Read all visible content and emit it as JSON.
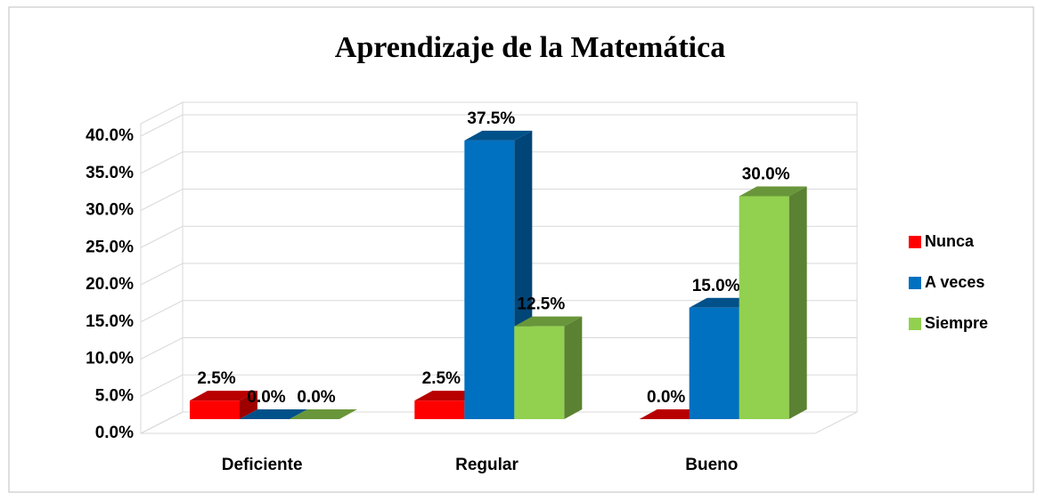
{
  "chart_data": {
    "type": "bar3d",
    "title": "Aprendizaje de la Matemática",
    "categories": [
      "Deficiente",
      "Regular",
      "Bueno"
    ],
    "series": [
      {
        "name": "Nunca",
        "color": "#ff0000",
        "values": [
          2.5,
          2.5,
          0.0
        ],
        "value_labels": [
          "2.5%",
          "2.5%",
          "0.0%"
        ]
      },
      {
        "name": "A veces",
        "color": "#0070c0",
        "values": [
          0.0,
          37.5,
          15.0
        ],
        "value_labels": [
          "0.0%",
          "37.5%",
          "15.0%"
        ]
      },
      {
        "name": "Siempre",
        "color": "#92d050",
        "values": [
          0.0,
          12.5,
          30.0
        ],
        "value_labels": [
          "0.0%",
          "12.5%",
          "30.0%"
        ]
      }
    ],
    "ylim": [
      0,
      40
    ],
    "yticks": [
      {
        "value": 0,
        "label": "0.0%"
      },
      {
        "value": 5,
        "label": "5.0%"
      },
      {
        "value": 10,
        "label": "10.0%"
      },
      {
        "value": 15,
        "label": "15.0%"
      },
      {
        "value": 20,
        "label": "20.0%"
      },
      {
        "value": 25,
        "label": "25.0%"
      },
      {
        "value": 30,
        "label": "30.0%"
      },
      {
        "value": 35,
        "label": "35.0%"
      },
      {
        "value": 40,
        "label": "40.0%"
      }
    ],
    "grid": true,
    "legend": "right"
  }
}
